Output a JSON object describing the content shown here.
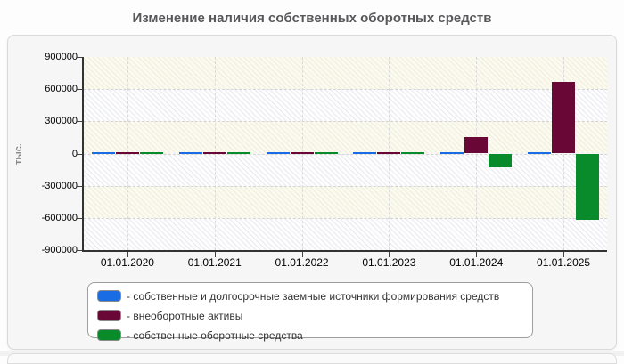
{
  "title": "Изменение наличия собственных оборотных средств",
  "y_axis": {
    "label": "тыс.",
    "ticks": [
      "900000",
      "600000",
      "300000",
      "0",
      "-300000",
      "-600000",
      "-900000"
    ]
  },
  "legend": {
    "dash_prefix": "- "
  },
  "chart_data": {
    "type": "bar",
    "title": "Изменение наличия собственных оборотных средств",
    "ylabel": "тыс.",
    "xlabel": "",
    "ylim": [
      -900000,
      900000
    ],
    "grid": true,
    "legend_position": "bottom",
    "categories": [
      "01.01.2020",
      "01.01.2021",
      "01.01.2022",
      "01.01.2023",
      "01.01.2024",
      "01.01.2025"
    ],
    "series": [
      {
        "name": "собственные и долгосрочные заемные источники формирования средств",
        "color": "#1a6ce4",
        "values": [
          10000,
          10000,
          10000,
          10000,
          10000,
          10000
        ]
      },
      {
        "name": "внеоборотные активы",
        "color": "#690736",
        "values": [
          10000,
          10000,
          10000,
          10000,
          150000,
          670000
        ]
      },
      {
        "name": "собственные оборотные средства",
        "color": "#098b2b",
        "values": [
          10000,
          10000,
          10000,
          10000,
          -130000,
          -620000
        ]
      }
    ]
  }
}
